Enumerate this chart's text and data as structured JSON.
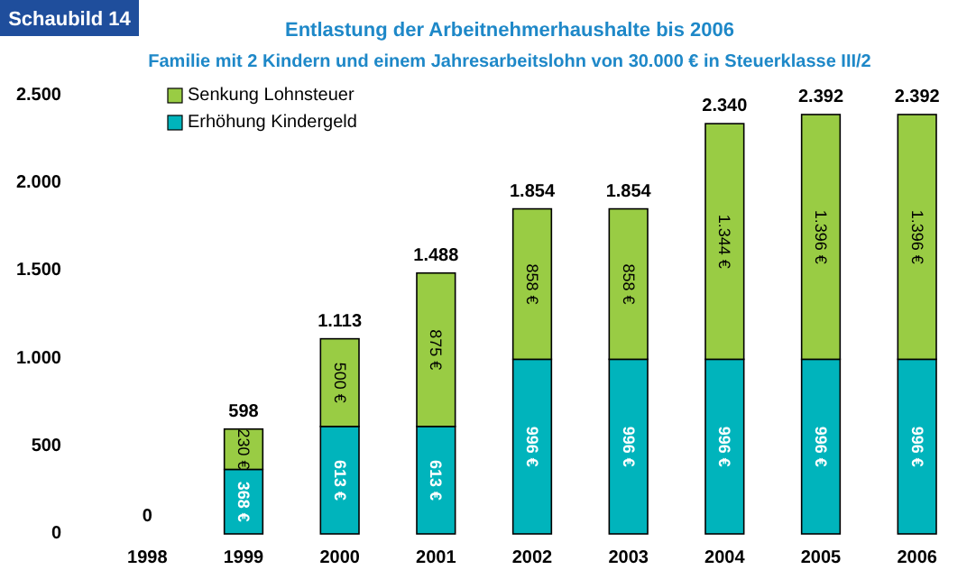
{
  "chart_data": {
    "type": "bar",
    "stacked": true,
    "title": "Entlastung der Arbeitnehmerhaushalte bis 2006",
    "subtitle": "Familie mit 2 Kindern und einem Jahresarbeitslohn von 30.000 € in Steuerklasse III/2",
    "annotations": [
      "Schaubild 14"
    ],
    "categories": [
      "1998",
      "1999",
      "2000",
      "2001",
      "2002",
      "2003",
      "2004",
      "2005",
      "2006"
    ],
    "series": [
      {
        "name": "Erhöhung Kindergeld",
        "color": "#00b4bc",
        "values": [
          0,
          368,
          613,
          613,
          996,
          996,
          996,
          996,
          996
        ],
        "value_labels": [
          null,
          "368 €",
          "613 €",
          "613 €",
          "996 €",
          "996 €",
          "996 €",
          "996 €",
          "996 €"
        ]
      },
      {
        "name": "Senkung Lohnsteuer",
        "color": "#99cc44",
        "values": [
          0,
          230,
          500,
          875,
          858,
          858,
          1344,
          1396,
          1396
        ],
        "value_labels": [
          null,
          "230 €",
          "500 €",
          "875 €",
          "858 €",
          "858 €",
          "1.344 €",
          "1.396 €",
          "1.396 €"
        ]
      }
    ],
    "totals": [
      "0",
      "598",
      "1.113",
      "1.488",
      "1.854",
      "1.854",
      "2.340",
      "2.392",
      "2.392"
    ],
    "ylim": [
      0,
      2500
    ],
    "yticks": [
      0,
      500,
      {
        "value": 1000,
        "label": "1.000"
      },
      {
        "value": 1500,
        "label": "1.500"
      },
      {
        "value": 2000,
        "label": "2.000"
      },
      {
        "value": 2500,
        "label": "2.500"
      }
    ],
    "legend": "top left",
    "grid": false
  }
}
